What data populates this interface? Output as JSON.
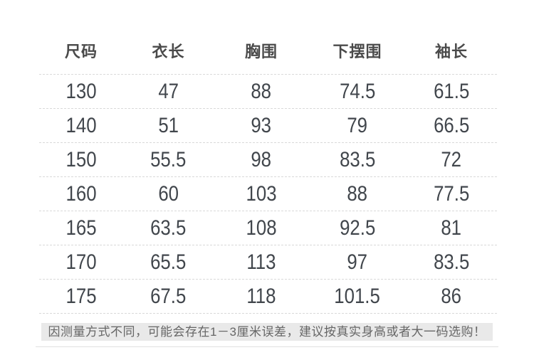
{
  "chart_data": {
    "type": "table",
    "title": "",
    "columns": [
      "尺码",
      "衣长",
      "胸围",
      "下摆围",
      "袖长"
    ],
    "rows": [
      [
        "130",
        "47",
        "88",
        "74.5",
        "61.5"
      ],
      [
        "140",
        "51",
        "93",
        "79",
        "66.5"
      ],
      [
        "150",
        "55.5",
        "98",
        "83.5",
        "72"
      ],
      [
        "160",
        "60",
        "103",
        "88",
        "77.5"
      ],
      [
        "165",
        "63.5",
        "108",
        "92.5",
        "81"
      ],
      [
        "170",
        "65.5",
        "113",
        "97",
        "83.5"
      ],
      [
        "175",
        "67.5",
        "118",
        "101.5",
        "86"
      ]
    ]
  },
  "footer": {
    "note": "因测量方式不同，可能会存在1－3厘米误差，建议按真实身高或者大一码选购！"
  },
  "colors": {
    "background": "#ffffff",
    "header_text": "#4a4a4a",
    "number_text": "#41464c",
    "separator": "#d9d9d9",
    "note_background": "#e9e9e9",
    "note_text": "#666666",
    "bottom_divider": "#e0e0e0"
  }
}
